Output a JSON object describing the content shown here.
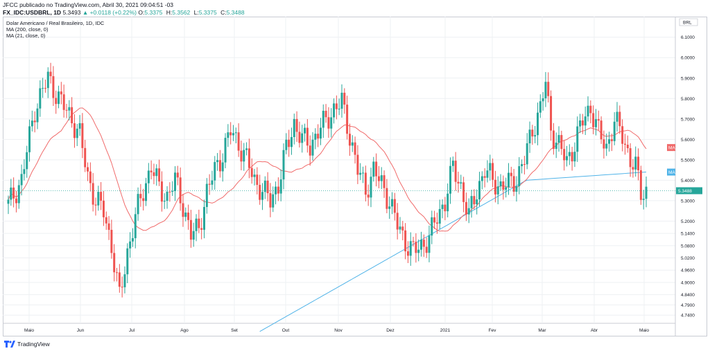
{
  "header": {
    "published": "JFCC publicado no TradingView.com, Abril 30, 2021 09:04:51 -03",
    "symbol": "FX_IDC:USDBRL, 1D",
    "price": "5.3493",
    "change": "▲ +0.0118 (+0.22%)",
    "ohlc": [
      {
        "k": "O:",
        "v": "5.3375"
      },
      {
        "k": "H:",
        "v": "5.3562"
      },
      {
        "k": "L:",
        "v": "5.3375"
      },
      {
        "k": "C:",
        "v": "5.3488"
      }
    ]
  },
  "legend": {
    "title": "Dolar Americano / Real Brasileiro, 1D, IDC",
    "ma200": "MA (200, close, 0)",
    "ma21": "MA (21, close, 0)"
  },
  "footer": {
    "brand": "TradingView"
  },
  "colors": {
    "up": "#26a69a",
    "down": "#ef5350",
    "ma200": "#4fb3e8",
    "ma21": "#f06a6a",
    "grid": "#eef0f3",
    "currentLine": "#26a69a"
  },
  "chart_data": {
    "type": "candlestick",
    "title": "Dolar Americano / Real Brasileiro, 1D, IDC",
    "currency": "BRL",
    "yticks": [
      "6.1000",
      "6.0000",
      "5.9000",
      "5.8000",
      "5.7000",
      "5.6000",
      "5.5000",
      "5.4000",
      "5.3000",
      "5.2000",
      "5.1400",
      "5.0800",
      "5.0200",
      "4.9600",
      "4.9000",
      "4.8400",
      "4.7900",
      "4.7400"
    ],
    "ylim": [
      4.7,
      6.16
    ],
    "xticks": [
      "Maio",
      "Jun",
      "Jul",
      "Ago",
      "Set",
      "Out",
      "Nov",
      "Dez",
      "2021",
      "Fev",
      "Mar",
      "Abr",
      "Maio"
    ],
    "last_price": "5.3488",
    "tag_ma21": "MA",
    "tag_ma200": "MA",
    "ma21_last": 5.56,
    "ma200_last": 5.44,
    "waypoints_close": [
      [
        0,
        5.28
      ],
      [
        5,
        5.4
      ],
      [
        10,
        5.75
      ],
      [
        15,
        5.9
      ],
      [
        20,
        5.78
      ],
      [
        24,
        5.7
      ],
      [
        27,
        5.62
      ],
      [
        30,
        5.42
      ],
      [
        33,
        5.3
      ],
      [
        36,
        5.25
      ],
      [
        39,
        5.08
      ],
      [
        42,
        4.82
      ],
      [
        45,
        5.05
      ],
      [
        48,
        5.22
      ],
      [
        51,
        5.35
      ],
      [
        54,
        5.47
      ],
      [
        57,
        5.36
      ],
      [
        60,
        5.32
      ],
      [
        63,
        5.4
      ],
      [
        66,
        5.28
      ],
      [
        69,
        5.13
      ],
      [
        72,
        5.17
      ],
      [
        75,
        5.34
      ],
      [
        78,
        5.45
      ],
      [
        81,
        5.53
      ],
      [
        84,
        5.64
      ],
      [
        87,
        5.58
      ],
      [
        90,
        5.5
      ],
      [
        93,
        5.4
      ],
      [
        96,
        5.35
      ],
      [
        99,
        5.3
      ],
      [
        102,
        5.38
      ],
      [
        105,
        5.55
      ],
      [
        108,
        5.68
      ],
      [
        111,
        5.6
      ],
      [
        114,
        5.57
      ],
      [
        117,
        5.64
      ],
      [
        120,
        5.69
      ],
      [
        123,
        5.75
      ],
      [
        126,
        5.78
      ],
      [
        129,
        5.62
      ],
      [
        132,
        5.45
      ],
      [
        135,
        5.35
      ],
      [
        138,
        5.45
      ],
      [
        141,
        5.38
      ],
      [
        144,
        5.3
      ],
      [
        147,
        5.18
      ],
      [
        150,
        5.1
      ],
      [
        153,
        5.05
      ],
      [
        156,
        5.08
      ],
      [
        159,
        5.12
      ],
      [
        162,
        5.22
      ],
      [
        165,
        5.3
      ],
      [
        168,
        5.46
      ],
      [
        171,
        5.37
      ],
      [
        174,
        5.22
      ],
      [
        177,
        5.35
      ],
      [
        180,
        5.45
      ],
      [
        183,
        5.4
      ],
      [
        186,
        5.37
      ],
      [
        189,
        5.38
      ],
      [
        192,
        5.41
      ],
      [
        195,
        5.5
      ],
      [
        198,
        5.65
      ],
      [
        201,
        5.75
      ],
      [
        203,
        5.88
      ],
      [
        205,
        5.65
      ],
      [
        208,
        5.57
      ],
      [
        211,
        5.49
      ],
      [
        214,
        5.58
      ],
      [
        217,
        5.69
      ],
      [
        220,
        5.76
      ],
      [
        223,
        5.63
      ],
      [
        226,
        5.56
      ],
      [
        229,
        5.69
      ],
      [
        232,
        5.62
      ],
      [
        235,
        5.5
      ],
      [
        237,
        5.46
      ],
      [
        239,
        5.34
      ],
      [
        241,
        5.35
      ]
    ]
  }
}
